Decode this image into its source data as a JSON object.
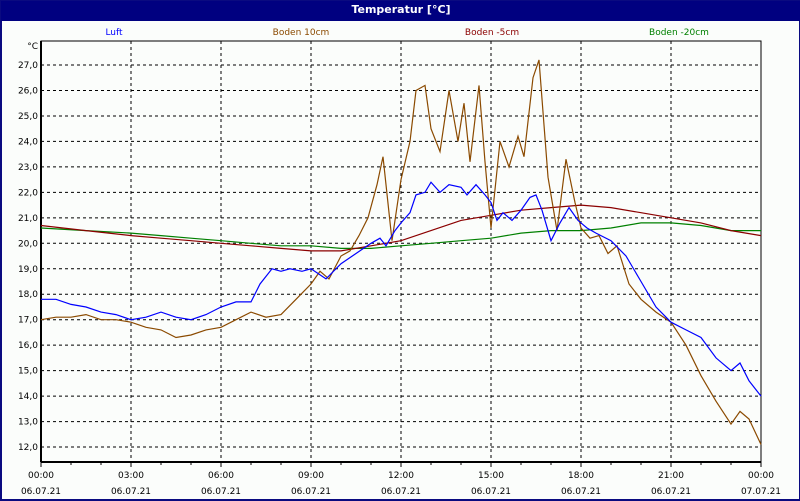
{
  "window": {
    "title": "Temperatur [°C]"
  },
  "chart_data": {
    "type": "line",
    "title": "Temperatur [°C]",
    "ylabel": "°C",
    "xlabel": "",
    "ylim": [
      11.4,
      27.9
    ],
    "xlim": [
      0,
      24
    ],
    "grid": true,
    "legend_position": "top",
    "y_ticks": [
      "12,0",
      "13,0",
      "14,0",
      "15,0",
      "16,0",
      "17,0",
      "18,0",
      "19,0",
      "20,0",
      "21,0",
      "22,0",
      "23,0",
      "24,0",
      "25,0",
      "26,0",
      "27,0"
    ],
    "x_ticks": [
      {
        "time": "00:00",
        "date": "06.07.21"
      },
      {
        "time": "03:00",
        "date": "06.07.21"
      },
      {
        "time": "06:00",
        "date": "06.07.21"
      },
      {
        "time": "09:00",
        "date": "06.07.21"
      },
      {
        "time": "12:00",
        "date": "06.07.21"
      },
      {
        "time": "15:00",
        "date": "06.07.21"
      },
      {
        "time": "18:00",
        "date": "06.07.21"
      },
      {
        "time": "21:00",
        "date": "06.07.21"
      },
      {
        "time": "00:00",
        "date": "07.07.21"
      }
    ],
    "series": [
      {
        "name": "Luft",
        "color": "#0000ff",
        "x": [
          0,
          0.5,
          1,
          1.5,
          2,
          2.5,
          3,
          3.5,
          4,
          4.5,
          5,
          5.5,
          6,
          6.5,
          7,
          7.3,
          7.7,
          8,
          8.3,
          8.7,
          9,
          9.5,
          10,
          10.5,
          11,
          11.3,
          11.5,
          11.8,
          12,
          12.3,
          12.5,
          12.8,
          13,
          13.3,
          13.6,
          14,
          14.2,
          14.5,
          14.8,
          15,
          15.2,
          15.4,
          15.7,
          16,
          16.3,
          16.5,
          16.7,
          17,
          17.3,
          17.6,
          17.9,
          18.2,
          18.5,
          19,
          19.5,
          20,
          20.5,
          21,
          21.5,
          22,
          22.5,
          23,
          23.3,
          23.6,
          24
        ],
        "y": [
          17.8,
          17.8,
          17.6,
          17.5,
          17.3,
          17.2,
          17.0,
          17.1,
          17.3,
          17.1,
          17.0,
          17.2,
          17.5,
          17.7,
          17.7,
          18.4,
          19.0,
          18.9,
          19.0,
          18.9,
          19.0,
          18.6,
          19.2,
          19.6,
          20.0,
          20.2,
          19.9,
          20.5,
          20.8,
          21.2,
          21.9,
          22.0,
          22.4,
          22.0,
          22.3,
          22.2,
          21.9,
          22.3,
          21.9,
          21.6,
          20.9,
          21.2,
          20.9,
          21.3,
          21.8,
          21.9,
          21.3,
          20.1,
          20.8,
          21.4,
          20.9,
          20.6,
          20.4,
          20.1,
          19.5,
          18.5,
          17.5,
          16.9,
          16.6,
          16.3,
          15.5,
          15.0,
          15.3,
          14.6,
          14.0
        ]
      },
      {
        "name": "Boden 10cm",
        "color": "#8b4a00",
        "x": [
          0,
          0.5,
          1,
          1.5,
          2,
          2.5,
          3,
          3.5,
          4,
          4.5,
          5,
          5.5,
          6,
          6.5,
          7,
          7.5,
          8,
          8.5,
          9,
          9.3,
          9.6,
          10,
          10.3,
          10.6,
          10.9,
          11.2,
          11.4,
          11.7,
          12,
          12.3,
          12.5,
          12.8,
          13,
          13.3,
          13.6,
          13.9,
          14.1,
          14.3,
          14.6,
          14.8,
          15,
          15.3,
          15.6,
          15.9,
          16.1,
          16.4,
          16.6,
          16.9,
          17.2,
          17.5,
          17.8,
          18,
          18.3,
          18.6,
          18.9,
          19.2,
          19.6,
          20,
          20.5,
          21,
          21.5,
          22,
          22.5,
          23,
          23.3,
          23.6,
          24
        ],
        "y": [
          17.0,
          17.1,
          17.1,
          17.2,
          17.0,
          17.0,
          16.9,
          16.7,
          16.6,
          16.3,
          16.4,
          16.6,
          16.7,
          17.0,
          17.3,
          17.1,
          17.2,
          17.8,
          18.4,
          18.9,
          18.6,
          19.5,
          19.7,
          20.3,
          21.0,
          22.3,
          23.4,
          20.1,
          22.5,
          24.0,
          26.0,
          26.2,
          24.5,
          23.6,
          26.0,
          24.0,
          25.5,
          23.2,
          26.2,
          23.2,
          20.6,
          24.0,
          23.0,
          24.2,
          23.4,
          26.5,
          27.2,
          22.6,
          20.5,
          23.3,
          21.6,
          20.6,
          20.2,
          20.3,
          19.6,
          19.9,
          18.4,
          17.8,
          17.3,
          16.9,
          16.0,
          14.8,
          13.8,
          12.9,
          13.4,
          13.1,
          12.1
        ]
      },
      {
        "name": "Boden -5cm",
        "color": "#8b0000",
        "x": [
          0,
          1.5,
          3,
          4,
          5,
          6,
          7,
          8,
          9,
          10,
          11,
          12,
          13,
          14,
          15,
          16,
          17,
          18,
          19,
          20,
          21,
          22,
          23,
          24
        ],
        "y": [
          20.7,
          20.5,
          20.3,
          20.2,
          20.1,
          20.0,
          19.9,
          19.8,
          19.7,
          19.7,
          19.9,
          20.1,
          20.5,
          20.9,
          21.1,
          21.3,
          21.4,
          21.5,
          21.4,
          21.2,
          21.0,
          20.8,
          20.5,
          20.3
        ]
      },
      {
        "name": "Boden -20cm",
        "color": "#008000",
        "x": [
          0,
          1.5,
          3,
          4,
          5,
          6,
          7,
          8,
          9,
          10,
          11,
          12,
          13,
          14,
          15,
          16,
          17,
          18,
          19,
          20,
          21,
          22,
          23,
          24
        ],
        "y": [
          20.6,
          20.5,
          20.4,
          20.3,
          20.2,
          20.1,
          20.0,
          19.9,
          19.9,
          19.8,
          19.8,
          19.9,
          20.0,
          20.1,
          20.2,
          20.4,
          20.5,
          20.5,
          20.6,
          20.8,
          20.8,
          20.7,
          20.5,
          20.5
        ]
      }
    ]
  }
}
